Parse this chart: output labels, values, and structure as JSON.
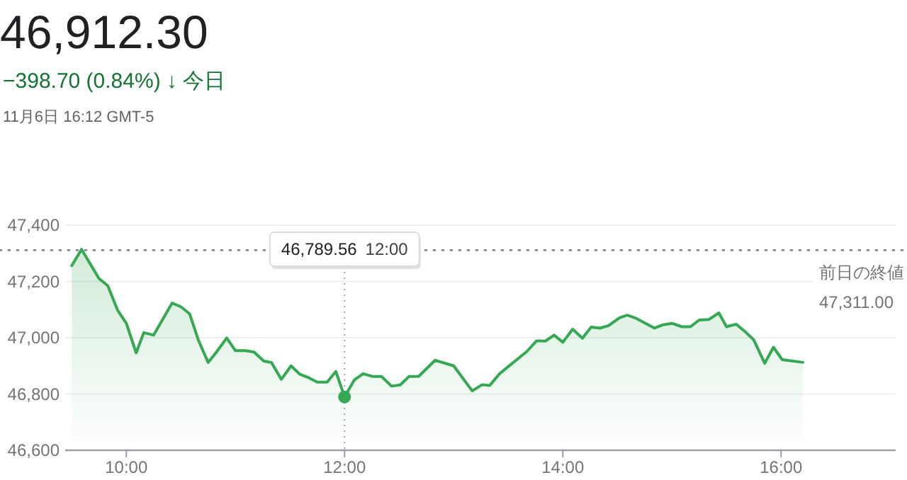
{
  "chart_data": {
    "type": "area",
    "title": "46,912.30",
    "subtitle": "−398.70 (0.84%) ↓ 今日",
    "annotations": [
      "11月6日 16:12 GMT-5",
      "46,789.56"
    ],
    "x": [
      9.5,
      9.59,
      9.75,
      9.83,
      9.92,
      10.0,
      10.09,
      10.16,
      10.25,
      10.42,
      10.5,
      10.58,
      10.66,
      10.75,
      10.83,
      10.92,
      11.0,
      11.09,
      11.17,
      11.26,
      11.33,
      11.42,
      11.51,
      11.59,
      11.67,
      11.75,
      11.84,
      11.92,
      12.0,
      12.09,
      12.17,
      12.26,
      12.34,
      12.43,
      12.51,
      12.59,
      12.68,
      12.83,
      13.0,
      13.17,
      13.26,
      13.33,
      13.42,
      13.67,
      13.76,
      13.84,
      13.92,
      14.0,
      14.09,
      14.18,
      14.26,
      14.34,
      14.42,
      14.52,
      14.59,
      14.66,
      14.84,
      14.92,
      15.0,
      15.09,
      15.17,
      15.25,
      15.34,
      15.43,
      15.5,
      15.59,
      15.68,
      15.75,
      15.85,
      15.93,
      16.01,
      16.2
    ],
    "series": [
      {
        "color": "#34a853",
        "values": [
          47256,
          47314,
          47210,
          47185,
          47098,
          47051,
          46946,
          47018,
          47009,
          47123,
          47110,
          47085,
          46992,
          46912,
          46951,
          46999,
          46954,
          46954,
          46949,
          46917,
          46912,
          46852,
          46900,
          46870,
          46858,
          46842,
          46842,
          46880,
          46789.56,
          46850,
          46872,
          46862,
          46862,
          46828,
          46832,
          46862,
          46863,
          46920,
          46900,
          46811,
          46833,
          46830,
          46872,
          46951,
          46989,
          46988,
          47009,
          46984,
          47030,
          46998,
          47038,
          47034,
          47043,
          47071,
          47080,
          47071,
          47034,
          47046,
          47051,
          47039,
          47039,
          47063,
          47065,
          47088,
          47039,
          47048,
          47018,
          46992,
          46909,
          46966,
          46922,
          46912.3
        ]
      }
    ],
    "xlim": [
      9.44,
      17.05
    ],
    "ylim": [
      46600,
      47400
    ],
    "xticks": [
      {
        "value": 10,
        "label": "10:00"
      },
      {
        "value": 12,
        "label": "12:00"
      },
      {
        "value": 14,
        "label": "14:00"
      },
      {
        "value": 16,
        "label": "16:00"
      }
    ],
    "yticks": [
      {
        "value": 46600,
        "label": "46,600"
      },
      {
        "value": 46800,
        "label": "46,800"
      },
      {
        "value": 47000,
        "label": "47,000"
      },
      {
        "value": 47200,
        "label": "47,200"
      },
      {
        "value": 47400,
        "label": "47,400"
      }
    ],
    "ref_lines": [
      {
        "axis": "y",
        "value": 47311,
        "label": "前日の終値 47,311.00",
        "line_style": "dotted"
      },
      {
        "axis": "x",
        "value": 12,
        "label": "12:00",
        "line_style": "dotted"
      }
    ],
    "grid": "y",
    "marker": "none",
    "line_style": "solid"
  }
}
